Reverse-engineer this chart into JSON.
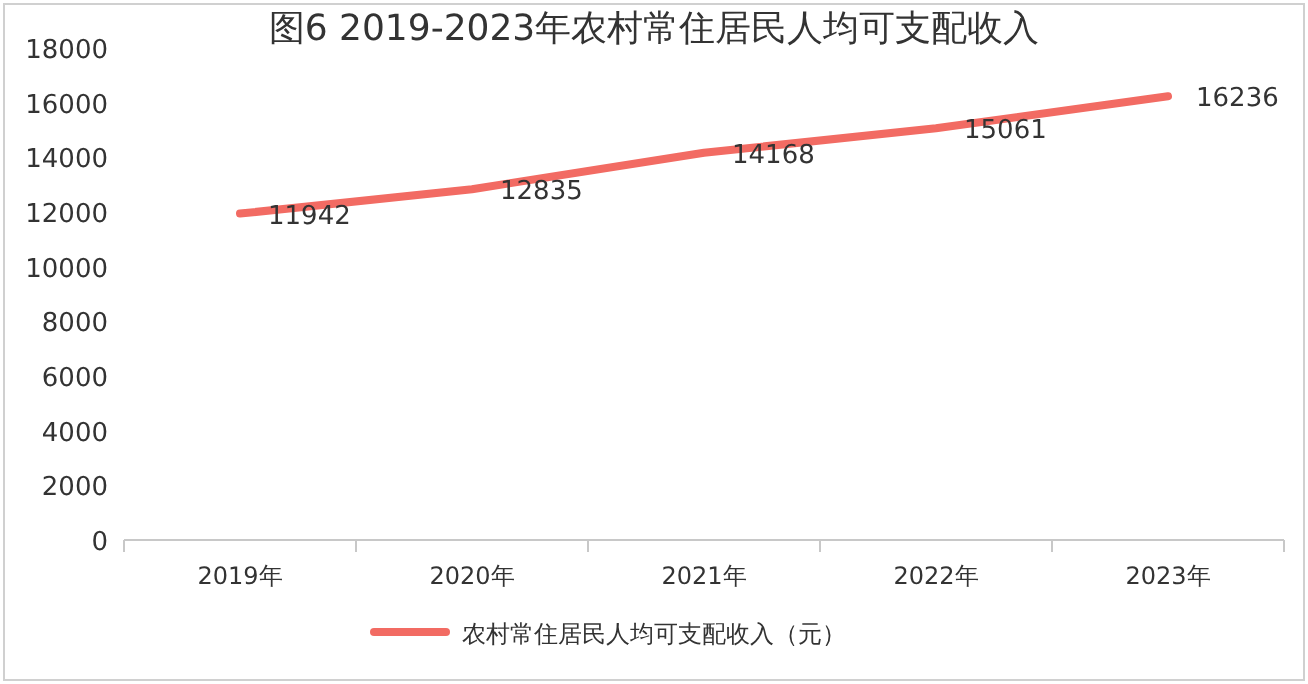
{
  "chart_data": {
    "type": "line",
    "title": "图6  2019-2023年农村常住居民人均可支配收入",
    "categories": [
      "2019年",
      "2020年",
      "2021年",
      "2022年",
      "2023年"
    ],
    "series": [
      {
        "name": "农村常住居民人均可支配收入（元）",
        "color": "#f26b63",
        "values": [
          11942,
          12835,
          14168,
          15061,
          16236
        ]
      }
    ],
    "ylim": [
      0,
      18000
    ],
    "yticks": [
      0,
      2000,
      4000,
      6000,
      8000,
      10000,
      12000,
      14000,
      16000,
      18000
    ],
    "grid": false,
    "legend": "bottom",
    "data_labels": true,
    "marker": "none",
    "line_style": "solid"
  }
}
